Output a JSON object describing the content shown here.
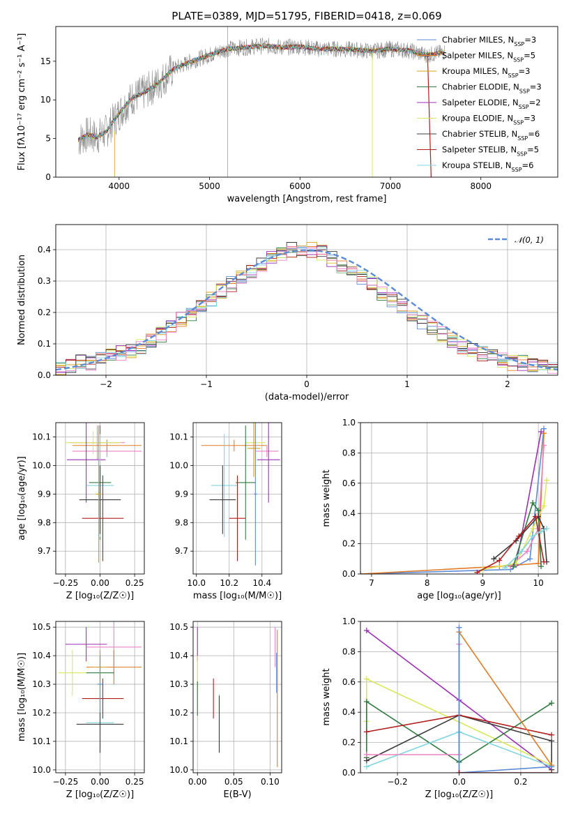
{
  "colors": [
    "#5b8bd6",
    "#e07b28",
    "#d4a017",
    "#2f7a3e",
    "#9b2fb5",
    "#d9e85a",
    "#3b3b3b",
    "#b11d1d",
    "#7fd6df",
    "#ee82c6",
    "#8c8c8c"
  ],
  "chart_data": [
    {
      "id": "spectrum",
      "type": "line",
      "title": "PLATE=0389, MJD=51795, FIBERID=0418, z=0.069",
      "xlabel": "wavelength [Angstrom, rest frame]",
      "ylabel": "Flux [fλ10⁻¹⁷ erg cm⁻² s⁻¹ A⁻¹]",
      "xlim": [
        3300,
        8850
      ],
      "ylim": [
        0,
        19.5
      ],
      "xticks": [
        "4000",
        "5000",
        "6000",
        "7000",
        "8000"
      ],
      "xtick_values": [
        4000,
        5000,
        6000,
        7000,
        8000
      ],
      "yticks": [
        "0",
        "5",
        "10",
        "15"
      ],
      "ytick_values": [
        0,
        5,
        10,
        15
      ],
      "grid": false,
      "legend": "top-right",
      "data_x": [
        3550,
        3650,
        3750,
        3850,
        3950,
        4050,
        4150,
        4250,
        4350,
        4450,
        4600,
        4800,
        5000,
        5200,
        5400,
        5600,
        5800,
        6000,
        6200,
        6400,
        6600,
        6800,
        7000,
        7200,
        7400,
        7600
      ],
      "data_y": [
        4.8,
        5.5,
        5.2,
        5.8,
        7.5,
        9.0,
        10.3,
        10.8,
        11.5,
        12.3,
        14.0,
        15.0,
        15.8,
        16.6,
        16.8,
        17.0,
        16.8,
        16.9,
        16.6,
        16.6,
        16.5,
        16.3,
        16.6,
        16.4,
        15.8,
        16.2
      ],
      "legend_entries": [
        "Chabrier MILES, N_SSP=3",
        "Salpeter MILES, N_SSP=5",
        "Kroupa MILES, N_SSP=3",
        "Chabrier ELODIE, N_SSP=3",
        "Salpeter ELODIE, N_SSP=2",
        "Kroupa ELODIE, N_SSP=3",
        "Chabrier STELIB, N_SSP=6",
        "Salpeter STELIB, N_SSP=5",
        "Kroupa STELIB, N_SSP=6"
      ],
      "legend_display": [
        {
          "pre": "Chabrier MILES, N",
          "sub": "SSP",
          "post": "=3"
        },
        {
          "pre": "Salpeter MILES, N",
          "sub": "SSP",
          "post": "=5"
        },
        {
          "pre": "Kroupa MILES, N",
          "sub": "SSP",
          "post": "=3"
        },
        {
          "pre": "Chabrier ELODIE, N",
          "sub": "SSP",
          "post": "=3"
        },
        {
          "pre": "Salpeter ELODIE, N",
          "sub": "SSP",
          "post": "=2"
        },
        {
          "pre": "Kroupa ELODIE, N",
          "sub": "SSP",
          "post": "=3"
        },
        {
          "pre": "Chabrier STELIB, N",
          "sub": "SSP",
          "post": "=6"
        },
        {
          "pre": "Salpeter STELIB, N",
          "sub": "SSP",
          "post": "=5"
        },
        {
          "pre": "Kroupa STELIB, N",
          "sub": "SSP",
          "post": "=6"
        }
      ]
    },
    {
      "id": "histogram",
      "type": "bar",
      "xlabel": "(data-model)/error",
      "ylabel": "Normed distribution",
      "xlim": [
        -2.5,
        2.5
      ],
      "ylim": [
        0,
        0.48
      ],
      "xticks": [
        "−2",
        "−1",
        "0",
        "1",
        "2"
      ],
      "xtick_values": [
        -2,
        -1,
        0,
        1,
        2
      ],
      "yticks": [
        "0.0",
        "0.1",
        "0.2",
        "0.3",
        "0.4"
      ],
      "ytick_values": [
        0,
        0.1,
        0.2,
        0.3,
        0.4
      ],
      "grid": true,
      "legend": "top-right",
      "legend_entries": [
        "𝒩(0, 1)"
      ],
      "bin_width": 0.1,
      "bin_centers": [
        -2.45,
        -2.35,
        -2.25,
        -2.15,
        -2.05,
        -1.95,
        -1.85,
        -1.75,
        -1.65,
        -1.55,
        -1.45,
        -1.35,
        -1.25,
        -1.15,
        -1.05,
        -0.95,
        -0.85,
        -0.75,
        -0.65,
        -0.55,
        -0.45,
        -0.35,
        -0.25,
        -0.15,
        -0.05,
        0.05,
        0.15,
        0.25,
        0.35,
        0.45,
        0.55,
        0.65,
        0.75,
        0.85,
        0.95,
        1.05,
        1.15,
        1.25,
        1.35,
        1.45,
        1.55,
        1.65,
        1.75,
        1.85,
        1.95,
        2.05,
        2.15,
        2.25,
        2.35,
        2.45
      ],
      "values": [
        0.02,
        0.03,
        0.04,
        0.04,
        0.05,
        0.06,
        0.07,
        0.08,
        0.09,
        0.11,
        0.13,
        0.16,
        0.18,
        0.19,
        0.22,
        0.24,
        0.27,
        0.29,
        0.31,
        0.33,
        0.35,
        0.37,
        0.39,
        0.4,
        0.4,
        0.4,
        0.39,
        0.37,
        0.35,
        0.33,
        0.31,
        0.29,
        0.26,
        0.24,
        0.22,
        0.19,
        0.17,
        0.15,
        0.13,
        0.11,
        0.09,
        0.08,
        0.07,
        0.06,
        0.05,
        0.04,
        0.04,
        0.03,
        0.03,
        0.02
      ],
      "normal_mu": 0,
      "normal_sigma": 1
    },
    {
      "id": "age-vs-Z",
      "type": "scatter",
      "xlabel": "Z [log₁₀(Z/Z☉)]",
      "ylabel": "age  [log₁₀(age/yr)]",
      "xlim": [
        -0.32,
        0.32
      ],
      "ylim": [
        9.62,
        10.15
      ],
      "xticks": [
        "−0.25",
        "0.00",
        "0.25"
      ],
      "xtick_values": [
        -0.25,
        0,
        0.25
      ],
      "yticks": [
        "9.7",
        "9.8",
        "9.9",
        "10.0",
        "10.1"
      ],
      "ytick_values": [
        9.7,
        9.8,
        9.9,
        10.0,
        10.1
      ],
      "grid": true,
      "points": [
        {
          "x": -0.02,
          "y": 10.08,
          "xerr": 0.2,
          "yerr": 0.06,
          "c": 9
        },
        {
          "x": 0.05,
          "y": 10.05,
          "xerr": 0.25,
          "yerr": 0.02,
          "c": 9
        },
        {
          "x": 0.05,
          "y": 10.07,
          "xerr": 0.25,
          "yerr": 0.02,
          "c": 1
        },
        {
          "x": -0.05,
          "y": 10.08,
          "xerr": 0.2,
          "yerr": 0.04,
          "c": 5
        },
        {
          "x": -0.1,
          "y": 10.02,
          "xerr": 0.14,
          "yerr": 0.15,
          "c": 4
        },
        {
          "x": 0.0,
          "y": 9.94,
          "xerr": 0.08,
          "yerr": 0.2,
          "c": 3
        },
        {
          "x": 0.0,
          "y": 9.93,
          "xerr": 0.1,
          "yerr": 0.18,
          "c": 8
        },
        {
          "x": 0.0,
          "y": 9.88,
          "xerr": 0.15,
          "yerr": 0.12,
          "c": 6
        },
        {
          "x": 0.02,
          "y": 9.815,
          "xerr": 0.15,
          "yerr": 0.15,
          "c": 7
        },
        {
          "x": -0.01,
          "y": 9.9,
          "xerr": 0.02,
          "yerr": 0.24,
          "c": 2
        }
      ]
    },
    {
      "id": "age-vs-mass",
      "type": "scatter",
      "xlabel": "mass [log₁₀(M/M☉)]",
      "ylabel": "",
      "xlim": [
        9.98,
        10.52
      ],
      "ylim": [
        9.62,
        10.15
      ],
      "xticks": [
        "10.0",
        "10.2",
        "10.4"
      ],
      "xtick_values": [
        10.0,
        10.2,
        10.4
      ],
      "yticks": [
        "9.7",
        "9.8",
        "9.9",
        "10.0",
        "10.1"
      ],
      "ytick_values": [
        9.7,
        9.8,
        9.9,
        10.0,
        10.1
      ],
      "grid": true,
      "points": [
        {
          "x": 10.23,
          "y": 10.07,
          "xerr": 0.2,
          "yerr": 0.02,
          "c": 1
        },
        {
          "x": 10.43,
          "y": 10.05,
          "xerr": 0.07,
          "yerr": 0.02,
          "c": 9
        },
        {
          "x": 10.44,
          "y": 10.02,
          "xerr": 0.07,
          "yerr": 0.15,
          "c": 4
        },
        {
          "x": 10.36,
          "y": 10.08,
          "xerr": 0.06,
          "yerr": 0.06,
          "c": 5
        },
        {
          "x": 10.35,
          "y": 10.06,
          "xerr": 0.04,
          "yerr": 0.1,
          "c": 2
        },
        {
          "x": 10.3,
          "y": 9.94,
          "xerr": 0.06,
          "yerr": 0.2,
          "c": 3
        },
        {
          "x": 10.17,
          "y": 9.93,
          "xerr": 0.08,
          "yerr": 0.18,
          "c": 8
        },
        {
          "x": 10.16,
          "y": 9.88,
          "xerr": 0.08,
          "yerr": 0.12,
          "c": 6
        },
        {
          "x": 10.25,
          "y": 9.815,
          "xerr": 0.05,
          "yerr": 0.15,
          "c": 7
        },
        {
          "x": 10.36,
          "y": 9.9,
          "xerr": 0.01,
          "yerr": 0.25,
          "c": 0
        }
      ]
    },
    {
      "id": "massweight-vs-age",
      "type": "line",
      "xlabel": "age  [log₁₀(age/yr)]",
      "ylabel": "mass weight",
      "xlim": [
        6.8,
        10.35
      ],
      "ylim": [
        0,
        1.0
      ],
      "xticks": [
        "7",
        "8",
        "9",
        "10"
      ],
      "xtick_values": [
        7,
        8,
        9,
        10
      ],
      "yticks": [
        "0.0",
        "0.2",
        "0.4",
        "0.6",
        "0.8",
        "1.0"
      ],
      "ytick_values": [
        0,
        0.2,
        0.4,
        0.6,
        0.8,
        1.0
      ],
      "grid": true,
      "series": [
        {
          "c": 0,
          "x": [
            6.8,
            9.5,
            9.85,
            10.1
          ],
          "y": [
            0.0,
            0.03,
            0.1,
            0.96
          ]
        },
        {
          "c": 1,
          "x": [
            6.8,
            9.3,
            10.0,
            10.1
          ],
          "y": [
            0.0,
            0.05,
            0.07,
            0.93
          ]
        },
        {
          "c": 9,
          "x": [
            9.5,
            9.8,
            10.0,
            10.1
          ],
          "y": [
            0.05,
            0.15,
            0.3,
            0.85
          ]
        },
        {
          "c": 4,
          "x": [
            9.6,
            10.05
          ],
          "y": [
            0.06,
            0.94
          ]
        },
        {
          "c": 5,
          "x": [
            9.0,
            9.6,
            9.9,
            10.1,
            10.15
          ],
          "y": [
            0.03,
            0.07,
            0.3,
            0.45,
            0.62
          ]
        },
        {
          "c": 3,
          "x": [
            9.55,
            9.9,
            10.0,
            10.05
          ],
          "y": [
            0.05,
            0.47,
            0.42,
            0.05
          ]
        },
        {
          "c": 6,
          "x": [
            9.2,
            9.6,
            10.0,
            10.1,
            10.15
          ],
          "y": [
            0.1,
            0.22,
            0.38,
            0.3,
            0.08
          ]
        },
        {
          "c": 7,
          "x": [
            8.9,
            9.3,
            9.65,
            9.95,
            10.1
          ],
          "y": [
            0.01,
            0.09,
            0.25,
            0.38,
            0.08
          ]
        },
        {
          "c": 8,
          "x": [
            9.4,
            9.7,
            9.9,
            10.05,
            10.15
          ],
          "y": [
            0.04,
            0.15,
            0.25,
            0.28,
            0.3
          ]
        }
      ]
    },
    {
      "id": "mass-vs-Z",
      "type": "scatter",
      "xlabel": "Z [log₁₀(Z/Z☉)]",
      "ylabel": "mass [log₁₀(M/M☉)]",
      "xlim": [
        -0.32,
        0.32
      ],
      "ylim": [
        9.99,
        10.52
      ],
      "xticks": [
        "−0.25",
        "0.00",
        "0.25"
      ],
      "xtick_values": [
        -0.25,
        0,
        0.25
      ],
      "yticks": [
        "10.0",
        "10.1",
        "10.2",
        "10.3",
        "10.4",
        "10.5"
      ],
      "ytick_values": [
        10.0,
        10.1,
        10.2,
        10.3,
        10.4,
        10.5
      ],
      "grid": true,
      "points": [
        {
          "x": -0.1,
          "y": 10.44,
          "xerr": 0.15,
          "yerr": 0.06,
          "c": 4
        },
        {
          "x": 0.1,
          "y": 10.43,
          "xerr": 0.2,
          "yerr": 0.1,
          "c": 9
        },
        {
          "x": 0.1,
          "y": 10.36,
          "xerr": 0.2,
          "yerr": 0.06,
          "c": 1
        },
        {
          "x": -0.2,
          "y": 10.34,
          "xerr": 0.1,
          "yerr": 0.08,
          "c": 5
        },
        {
          "x": 0.0,
          "y": 10.34,
          "xerr": 0.1,
          "yerr": 0.08,
          "c": 3
        },
        {
          "x": 0.0,
          "y": 10.36,
          "xerr": 0.05,
          "yerr": 0.06,
          "c": 2
        },
        {
          "x": 0.02,
          "y": 10.25,
          "xerr": 0.15,
          "yerr": 0.07,
          "c": 7
        },
        {
          "x": 0.0,
          "y": 10.165,
          "xerr": 0.1,
          "yerr": 0.1,
          "c": 8
        },
        {
          "x": 0.0,
          "y": 10.16,
          "xerr": 0.17,
          "yerr": 0.1,
          "c": 6
        },
        {
          "x": 0.0,
          "y": 10.3,
          "xerr": 0.02,
          "yerr": 0.1,
          "c": 0
        }
      ]
    },
    {
      "id": "mass-vs-EBV",
      "type": "scatter",
      "xlabel": "E(B-V)",
      "ylabel": "",
      "xlim": [
        -0.006,
        0.116
      ],
      "ylim": [
        9.99,
        10.52
      ],
      "xticks": [
        "0.00",
        "0.05",
        "0.10"
      ],
      "xtick_values": [
        0,
        0.05,
        0.1
      ],
      "yticks": [
        "10.0",
        "10.1",
        "10.2",
        "10.3",
        "10.4",
        "10.5"
      ],
      "ytick_values": [
        10.0,
        10.1,
        10.2,
        10.3,
        10.4,
        10.5
      ],
      "grid": true,
      "points": [
        {
          "x": 0.0,
          "y": 10.44,
          "xerr": 0,
          "yerr": 0.06,
          "c": 4
        },
        {
          "x": 0.0,
          "y": 10.34,
          "xerr": 0,
          "yerr": 0.06,
          "c": 5
        },
        {
          "x": 0.0,
          "y": 10.25,
          "xerr": 0,
          "yerr": 0.06,
          "c": 3
        },
        {
          "x": 0.022,
          "y": 10.25,
          "xerr": 0,
          "yerr": 0.07,
          "c": 7
        },
        {
          "x": 0.03,
          "y": 10.165,
          "xerr": 0,
          "yerr": 0.1,
          "c": 8
        },
        {
          "x": 0.03,
          "y": 10.16,
          "xerr": 0,
          "yerr": 0.1,
          "c": 6
        },
        {
          "x": 0.107,
          "y": 10.43,
          "xerr": 0,
          "yerr": 0.07,
          "c": 9
        },
        {
          "x": 0.109,
          "y": 10.34,
          "xerr": 0,
          "yerr": 0.07,
          "c": 0
        },
        {
          "x": 0.11,
          "y": 10.25,
          "xerr": 0,
          "yerr": 0.24,
          "c": 1
        }
      ]
    },
    {
      "id": "massweight-vs-Z",
      "type": "line",
      "xlabel": "Z [log₁₀(Z/Z☉)]",
      "ylabel": "mass weight",
      "xlim": [
        -0.32,
        0.32
      ],
      "ylim": [
        0,
        1.0
      ],
      "xticks": [
        "−0.2",
        "0.0",
        "0.2"
      ],
      "xtick_values": [
        -0.2,
        0,
        0.2
      ],
      "yticks": [
        "0.0",
        "0.2",
        "0.4",
        "0.6",
        "0.8",
        "1.0"
      ],
      "ytick_values": [
        0,
        0.2,
        0.4,
        0.6,
        0.8,
        1.0
      ],
      "grid": true,
      "series": [
        {
          "c": 4,
          "x": [
            -0.3,
            0.0,
            0.3
          ],
          "y": [
            0.94,
            0.48,
            0.02
          ]
        },
        {
          "c": 5,
          "x": [
            -0.3,
            -0.3,
            0.3
          ],
          "y": [
            0.34,
            0.62,
            0.05
          ]
        },
        {
          "c": 3,
          "x": [
            -0.3,
            -0.3,
            0.0,
            0.3
          ],
          "y": [
            0.1,
            0.47,
            0.07,
            0.46
          ]
        },
        {
          "c": 6,
          "x": [
            -0.3,
            0.0,
            0.3,
            0.3
          ],
          "y": [
            0.08,
            0.38,
            0.21,
            0.02
          ]
        },
        {
          "c": 7,
          "x": [
            -0.3,
            0.0,
            0.3
          ],
          "y": [
            0.27,
            0.38,
            0.25
          ]
        },
        {
          "c": 8,
          "x": [
            -0.3,
            0.0,
            0.3
          ],
          "y": [
            0.04,
            0.27,
            0.04
          ]
        },
        {
          "c": 9,
          "x": [
            -0.3,
            0.0,
            0.0
          ],
          "y": [
            0.12,
            0.12,
            0.85
          ]
        },
        {
          "c": 1,
          "x": [
            0.0,
            0.0,
            0.3
          ],
          "y": [
            0.0,
            0.93,
            0.05
          ]
        },
        {
          "c": 0,
          "x": [
            0.0,
            0.0,
            0.3
          ],
          "y": [
            0.96,
            0.0,
            0.04
          ]
        },
        {
          "c": 7,
          "x": [
            0.0,
            0.3
          ],
          "y": [
            0.0,
            0.0
          ]
        }
      ]
    }
  ]
}
